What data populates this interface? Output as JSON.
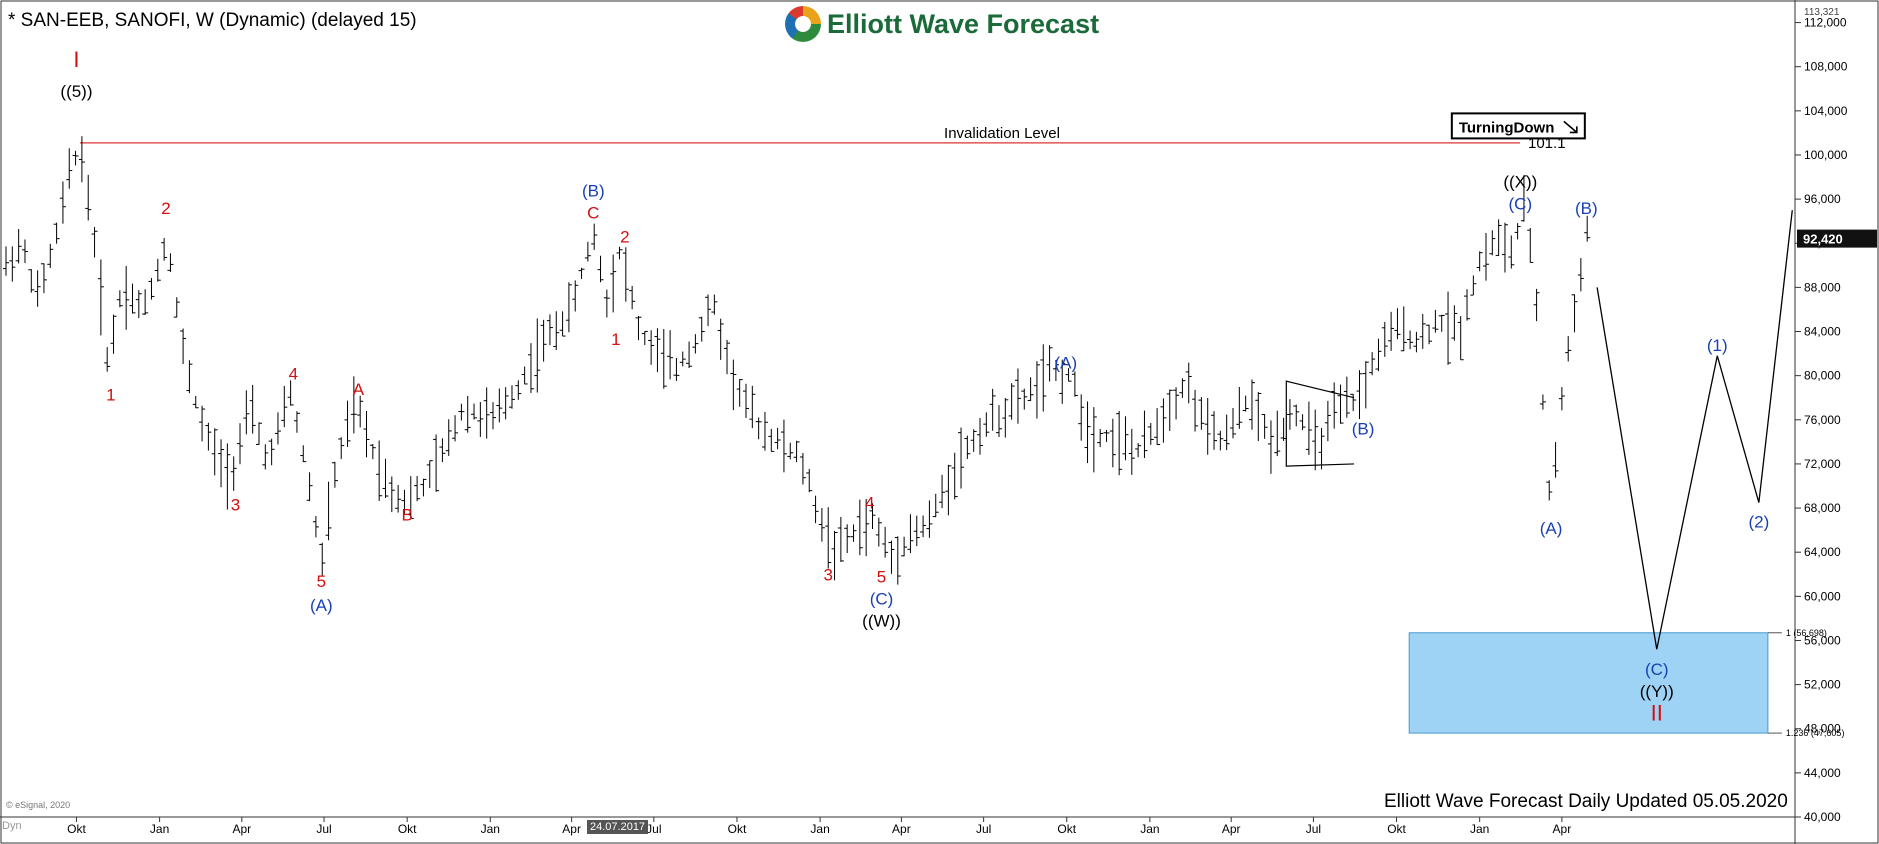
{
  "header": {
    "title": "* SAN-EEB, SANOFI, W (Dynamic) (delayed 15)",
    "logo_text": "Elliott Wave Forecast"
  },
  "footer": {
    "updated": "Elliott Wave Forecast Daily Updated 05.05.2020",
    "copyright": "© eSignal, 2020",
    "dyn_label": "Dyn",
    "cursor_date": "24.07.2017"
  },
  "chart_data": {
    "type": "ohlc-bar",
    "ylim": [
      40000,
      113321
    ],
    "ytick_labels": [
      "40,000",
      "44,000",
      "48,000",
      "52,000",
      "56,000",
      "60,000",
      "64,000",
      "68,000",
      "72,000",
      "76,000",
      "80,000",
      "84,000",
      "88,000",
      "92,000",
      "96,000",
      "100,000",
      "104,000",
      "108,000",
      "112,000"
    ],
    "ytick_values": [
      40000,
      44000,
      48000,
      52000,
      56000,
      60000,
      64000,
      68000,
      72000,
      76000,
      80000,
      84000,
      88000,
      92000,
      96000,
      100000,
      104000,
      108000,
      112000
    ],
    "y_top_label": "113,321",
    "last_price_label": "92,420",
    "last_price": 92420,
    "x_labels": [
      "Okt",
      "Jan",
      "Apr",
      "Jul",
      "Okt",
      "Jan",
      "Apr",
      "Jul",
      "Okt",
      "Jan",
      "Apr",
      "Jul",
      "Okt",
      "Jan",
      "Apr",
      "Jul",
      "Okt",
      "Jan",
      "Apr"
    ],
    "x_start": "2015-07-15",
    "x_end": "2020-12-15",
    "x_label_dates": [
      "2015-10-01",
      "2016-01-01",
      "2016-04-01",
      "2016-07-01",
      "2016-10-01",
      "2017-01-01",
      "2017-04-01",
      "2017-07-01",
      "2017-10-01",
      "2018-01-01",
      "2018-04-01",
      "2018-07-01",
      "2018-10-01",
      "2019-01-01",
      "2019-04-01",
      "2019-07-01",
      "2019-10-01",
      "2020-01-01",
      "2020-04-01"
    ],
    "price_path": [
      [
        "2015-07-15",
        90000
      ],
      [
        "2015-08-01",
        92000
      ],
      [
        "2015-08-20",
        87000
      ],
      [
        "2015-09-10",
        93000
      ],
      [
        "2015-09-25",
        99000
      ],
      [
        "2015-10-05",
        100800
      ],
      [
        "2015-10-20",
        93000
      ],
      [
        "2015-11-05",
        81000
      ],
      [
        "2015-11-20",
        88000
      ],
      [
        "2015-12-15",
        86000
      ],
      [
        "2016-01-10",
        92500
      ],
      [
        "2016-01-25",
        83000
      ],
      [
        "2016-02-15",
        76000
      ],
      [
        "2016-03-01",
        73000
      ],
      [
        "2016-03-20",
        71000
      ],
      [
        "2016-04-10",
        77000
      ],
      [
        "2016-05-01",
        72000
      ],
      [
        "2016-05-25",
        78500
      ],
      [
        "2016-06-15",
        70000
      ],
      [
        "2016-06-28",
        63000
      ],
      [
        "2016-07-15",
        72000
      ],
      [
        "2016-08-05",
        77500
      ],
      [
        "2016-08-20",
        74000
      ],
      [
        "2016-09-10",
        70000
      ],
      [
        "2016-10-01",
        68500
      ],
      [
        "2016-10-20",
        70000
      ],
      [
        "2016-11-10",
        73000
      ],
      [
        "2016-12-01",
        77000
      ],
      [
        "2017-01-05",
        76000
      ],
      [
        "2017-02-01",
        79000
      ],
      [
        "2017-03-01",
        83000
      ],
      [
        "2017-04-01",
        86000
      ],
      [
        "2017-04-25",
        93000
      ],
      [
        "2017-05-10",
        87000
      ],
      [
        "2017-05-25",
        91500
      ],
      [
        "2017-06-15",
        84000
      ],
      [
        "2017-07-05",
        82000
      ],
      [
        "2017-07-24",
        80500
      ],
      [
        "2017-08-15",
        83000
      ],
      [
        "2017-09-05",
        86500
      ],
      [
        "2017-09-25",
        80000
      ],
      [
        "2017-10-20",
        76000
      ],
      [
        "2017-11-15",
        74000
      ],
      [
        "2017-12-10",
        72500
      ],
      [
        "2018-01-05",
        66000
      ],
      [
        "2018-01-20",
        64000
      ],
      [
        "2018-02-10",
        66000
      ],
      [
        "2018-03-01",
        67000
      ],
      [
        "2018-03-20",
        63500
      ],
      [
        "2018-04-10",
        65500
      ],
      [
        "2018-05-01",
        66500
      ],
      [
        "2018-06-01",
        72000
      ],
      [
        "2018-07-01",
        75500
      ],
      [
        "2018-08-15",
        78000
      ],
      [
        "2018-09-15",
        80500
      ],
      [
        "2018-10-05",
        80000
      ],
      [
        "2018-10-25",
        75000
      ],
      [
        "2018-11-20",
        74500
      ],
      [
        "2018-12-20",
        73000
      ],
      [
        "2019-01-20",
        77000
      ],
      [
        "2019-02-10",
        79500
      ],
      [
        "2019-03-05",
        75000
      ],
      [
        "2019-03-25",
        74000
      ],
      [
        "2019-04-20",
        78000
      ],
      [
        "2019-05-15",
        74000
      ],
      [
        "2019-06-10",
        77000
      ],
      [
        "2019-07-05",
        73500
      ],
      [
        "2019-07-25",
        76500
      ],
      [
        "2019-08-20",
        78000
      ],
      [
        "2019-09-10",
        82000
      ],
      [
        "2019-10-05",
        84500
      ],
      [
        "2019-10-25",
        83000
      ],
      [
        "2019-11-15",
        85000
      ],
      [
        "2019-12-10",
        84000
      ],
      [
        "2019-12-30",
        90000
      ],
      [
        "2020-01-20",
        92500
      ],
      [
        "2020-02-05",
        91000
      ],
      [
        "2020-02-20",
        95500
      ],
      [
        "2020-03-05",
        86000
      ],
      [
        "2020-03-15",
        72000
      ],
      [
        "2020-03-20",
        68000
      ],
      [
        "2020-04-01",
        78000
      ],
      [
        "2020-04-15",
        86000
      ],
      [
        "2020-04-28",
        93000
      ],
      [
        "2020-05-05",
        92420
      ]
    ],
    "invalidation": {
      "label": "Invalidation Level",
      "value": 101.1,
      "value_label": "101.1",
      "start": "2015-10-05"
    },
    "badge": {
      "text": "TurningDown",
      "date": "2020-01-20",
      "y": 102500
    },
    "projection": [
      [
        "2020-05-10",
        88000
      ],
      [
        "2020-07-15",
        55200
      ],
      [
        "2020-09-20",
        81800
      ],
      [
        "2020-11-05",
        68500
      ],
      [
        "2020-12-12",
        95000
      ]
    ],
    "target_zone": {
      "from": "2019-10-15",
      "to": "2020-11-15",
      "top": 56698,
      "bottom": 47605,
      "top_label": "1 (56,698)",
      "bottom_label": "1.236 (47,605)",
      "color": "#9fd3f5"
    },
    "triangle": {
      "start": "2019-06-01",
      "end": "2019-08-15",
      "top_start": 79500,
      "top_end": 78000,
      "bot_start": 71800,
      "bot_end": 72000
    },
    "annotations": [
      {
        "text": "I",
        "date": "2015-10-01",
        "y": 108500,
        "color": "#d01010"
      },
      {
        "text": "((5))",
        "date": "2015-10-01",
        "y": 105800,
        "color": "#000000"
      },
      {
        "text": "1",
        "date": "2015-11-08",
        "y": 78300,
        "color": "#d01010"
      },
      {
        "text": "2",
        "date": "2016-01-08",
        "y": 95200,
        "color": "#d01010"
      },
      {
        "text": "3",
        "date": "2016-03-25",
        "y": 68300,
        "color": "#d01010"
      },
      {
        "text": "4",
        "date": "2016-05-28",
        "y": 80200,
        "color": "#d01010"
      },
      {
        "text": "5",
        "date": "2016-06-28",
        "y": 61400,
        "color": "#d01010"
      },
      {
        "text": "(A)",
        "date": "2016-06-28",
        "y": 59200,
        "color": "#1a3fb5"
      },
      {
        "text": "A",
        "date": "2016-08-08",
        "y": 78800,
        "color": "#d01010"
      },
      {
        "text": "B",
        "date": "2016-10-01",
        "y": 67400,
        "color": "#d01010"
      },
      {
        "text": "(B)",
        "date": "2017-04-25",
        "y": 96800,
        "color": "#1a3fb5"
      },
      {
        "text": "C",
        "date": "2017-04-25",
        "y": 94800,
        "color": "#d01010"
      },
      {
        "text": "2",
        "date": "2017-05-30",
        "y": 92600,
        "color": "#d01010"
      },
      {
        "text": "1",
        "date": "2017-05-20",
        "y": 83300,
        "color": "#d01010"
      },
      {
        "text": "4",
        "date": "2018-02-25",
        "y": 68500,
        "color": "#d01010"
      },
      {
        "text": "3",
        "date": "2018-01-10",
        "y": 62000,
        "color": "#d01010"
      },
      {
        "text": "5",
        "date": "2018-03-10",
        "y": 61800,
        "color": "#d01010"
      },
      {
        "text": "(C)",
        "date": "2018-03-10",
        "y": 59800,
        "color": "#1a3fb5"
      },
      {
        "text": "((W))",
        "date": "2018-03-10",
        "y": 57800,
        "color": "#000000"
      },
      {
        "text": "(A)",
        "date": "2018-09-30",
        "y": 81200,
        "color": "#1a3fb5"
      },
      {
        "text": "(B)",
        "date": "2019-08-25",
        "y": 75200,
        "color": "#1a3fb5"
      },
      {
        "text": "((X))",
        "date": "2020-02-15",
        "y": 97600,
        "color": "#000000"
      },
      {
        "text": "(C)",
        "date": "2020-02-15",
        "y": 95600,
        "color": "#1a3fb5"
      },
      {
        "text": "(B)",
        "date": "2020-04-28",
        "y": 95200,
        "color": "#1a3fb5"
      },
      {
        "text": "(A)",
        "date": "2020-03-20",
        "y": 66200,
        "color": "#1a3fb5"
      },
      {
        "text": "(1)",
        "date": "2020-09-20",
        "y": 82800,
        "color": "#1a3fb5"
      },
      {
        "text": "(2)",
        "date": "2020-11-05",
        "y": 66800,
        "color": "#1a3fb5"
      },
      {
        "text": "(C)",
        "date": "2020-07-15",
        "y": 53400,
        "color": "#1a3fb5"
      },
      {
        "text": "((Y))",
        "date": "2020-07-15",
        "y": 51400,
        "color": "#000000"
      },
      {
        "text": "II",
        "date": "2020-07-15",
        "y": 49300,
        "color": "#d01010"
      }
    ]
  }
}
